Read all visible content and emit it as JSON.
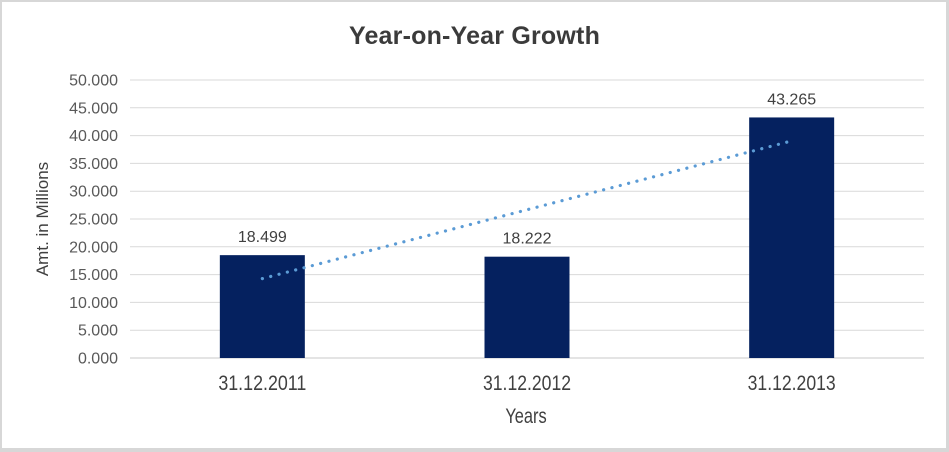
{
  "chart_data": {
    "type": "bar",
    "title": "Year-on-Year Growth",
    "xlabel": "Years",
    "ylabel": "Amt. in Millions",
    "categories": [
      "31.12.2011",
      "31.12.2012",
      "31.12.2013"
    ],
    "values": [
      18.499,
      18.222,
      43.265
    ],
    "data_labels": [
      "18.499",
      "18.222",
      "43.265"
    ],
    "ylim": [
      0,
      50
    ],
    "y_tick_step": 5,
    "y_tick_labels": [
      "0.000",
      "5.000",
      "10.000",
      "15.000",
      "20.000",
      "25.000",
      "30.000",
      "35.000",
      "40.000",
      "45.000",
      "50.000"
    ],
    "grid": "horizontal",
    "legend": "none",
    "trendline": {
      "type": "linear",
      "style": "dotted"
    },
    "colors": {
      "bar": "#05215F",
      "trendline": "#5B9BD5",
      "gridline": "#D9D9D9",
      "axis_line": "#C8C8C8",
      "title_text": "#3B3B3B",
      "tick_text": "#595959",
      "label_text": "#404040"
    }
  }
}
